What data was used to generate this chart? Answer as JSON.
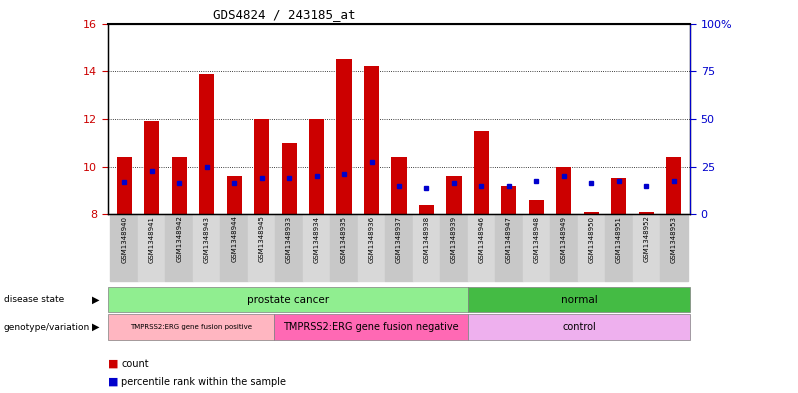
{
  "title": "GDS4824 / 243185_at",
  "samples": [
    "GSM1348940",
    "GSM1348941",
    "GSM1348942",
    "GSM1348943",
    "GSM1348944",
    "GSM1348945",
    "GSM1348933",
    "GSM1348934",
    "GSM1348935",
    "GSM1348936",
    "GSM1348937",
    "GSM1348938",
    "GSM1348939",
    "GSM1348946",
    "GSM1348947",
    "GSM1348948",
    "GSM1348949",
    "GSM1348950",
    "GSM1348951",
    "GSM1348952",
    "GSM1348953"
  ],
  "count_values": [
    10.4,
    11.9,
    10.4,
    13.9,
    9.6,
    12.0,
    11.0,
    12.0,
    14.5,
    14.2,
    10.4,
    8.4,
    9.6,
    11.5,
    9.2,
    8.6,
    10.0,
    8.1,
    9.5,
    8.1,
    10.4
  ],
  "percentile_values": [
    9.35,
    9.8,
    9.3,
    10.0,
    9.3,
    9.5,
    9.5,
    9.6,
    9.7,
    10.2,
    9.2,
    9.1,
    9.3,
    9.2,
    9.2,
    9.4,
    9.6,
    9.3,
    9.4,
    9.2,
    9.4
  ],
  "ymin": 8,
  "ymax": 16,
  "yticks_left": [
    8,
    10,
    12,
    14,
    16
  ],
  "yticks_right": [
    0,
    25,
    50,
    75,
    100
  ],
  "bar_color": "#cc0000",
  "blue_color": "#0000cc",
  "disease_state_groups": [
    {
      "label": "prostate cancer",
      "start": 0,
      "end": 13,
      "color": "#90EE90"
    },
    {
      "label": "normal",
      "start": 13,
      "end": 21,
      "color": "#44BB44"
    }
  ],
  "genotype_groups": [
    {
      "label": "TMPRSS2:ERG gene fusion positive",
      "start": 0,
      "end": 6,
      "color": "#FFB6C1"
    },
    {
      "label": "TMPRSS2:ERG gene fusion negative",
      "start": 6,
      "end": 13,
      "color": "#FF69B4"
    },
    {
      "label": "control",
      "start": 13,
      "end": 21,
      "color": "#EEB5EE"
    }
  ],
  "bg_color": "#ffffff",
  "tick_color_left": "#cc0000",
  "tick_color_right": "#0000cc",
  "label_row_colors": [
    "#cccccc",
    "#bbbbbb"
  ]
}
